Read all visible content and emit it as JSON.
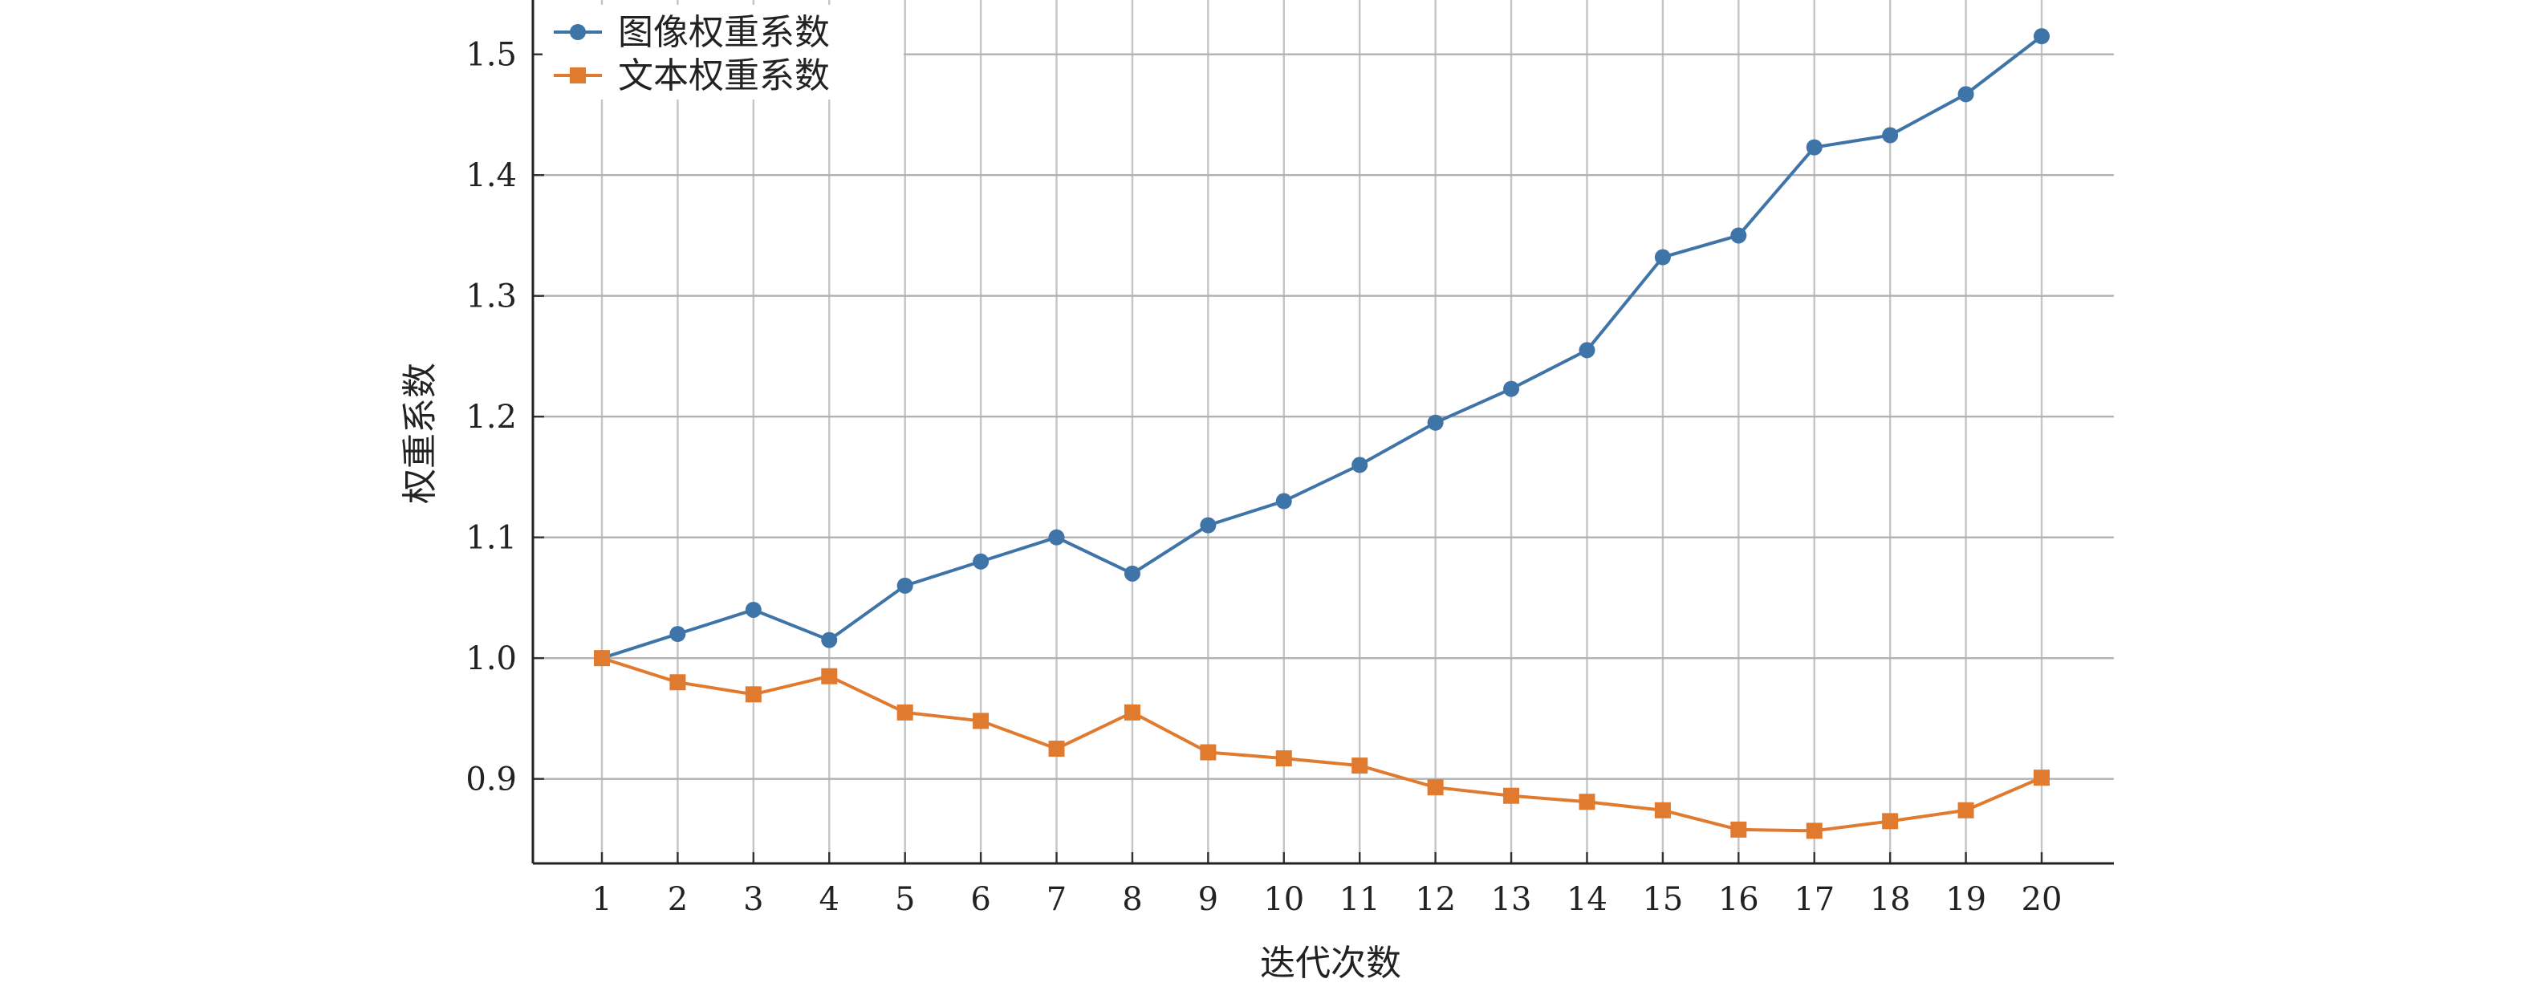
{
  "chart_data": {
    "type": "line",
    "title": "",
    "xlabel": "迭代次数",
    "ylabel": "权重系数",
    "x": [
      1,
      2,
      3,
      4,
      5,
      6,
      7,
      8,
      9,
      10,
      11,
      12,
      13,
      14,
      15,
      16,
      17,
      18,
      19,
      20
    ],
    "ylim": [
      0.83,
      1.545
    ],
    "yticks": [
      0.9,
      1.0,
      1.1,
      1.2,
      1.3,
      1.4,
      1.5
    ],
    "ytick_labels": [
      "0.9",
      "1.0",
      "1.1",
      "1.2",
      "1.3",
      "1.4",
      "1.5"
    ],
    "xtick_labels": [
      "1",
      "2",
      "3",
      "4",
      "5",
      "6",
      "7",
      "8",
      "9",
      "10",
      "11",
      "12",
      "13",
      "14",
      "15",
      "16",
      "17",
      "18",
      "19",
      "20"
    ],
    "grid": true,
    "legend_position": "top-left",
    "series": [
      {
        "name": "图像权重系数",
        "color": "#3f74a8",
        "marker": "circle",
        "values": [
          1.0,
          1.02,
          1.04,
          1.015,
          1.06,
          1.08,
          1.1,
          1.07,
          1.11,
          1.13,
          1.16,
          1.195,
          1.223,
          1.255,
          1.332,
          1.35,
          1.423,
          1.433,
          1.467,
          1.515
        ]
      },
      {
        "name": "文本权重系数",
        "color": "#e07a2f",
        "marker": "square",
        "values": [
          1.0,
          0.98,
          0.97,
          0.985,
          0.955,
          0.948,
          0.925,
          0.955,
          0.922,
          0.917,
          0.911,
          0.893,
          0.886,
          0.881,
          0.874,
          0.858,
          0.857,
          0.865,
          0.874,
          0.901
        ]
      }
    ]
  }
}
